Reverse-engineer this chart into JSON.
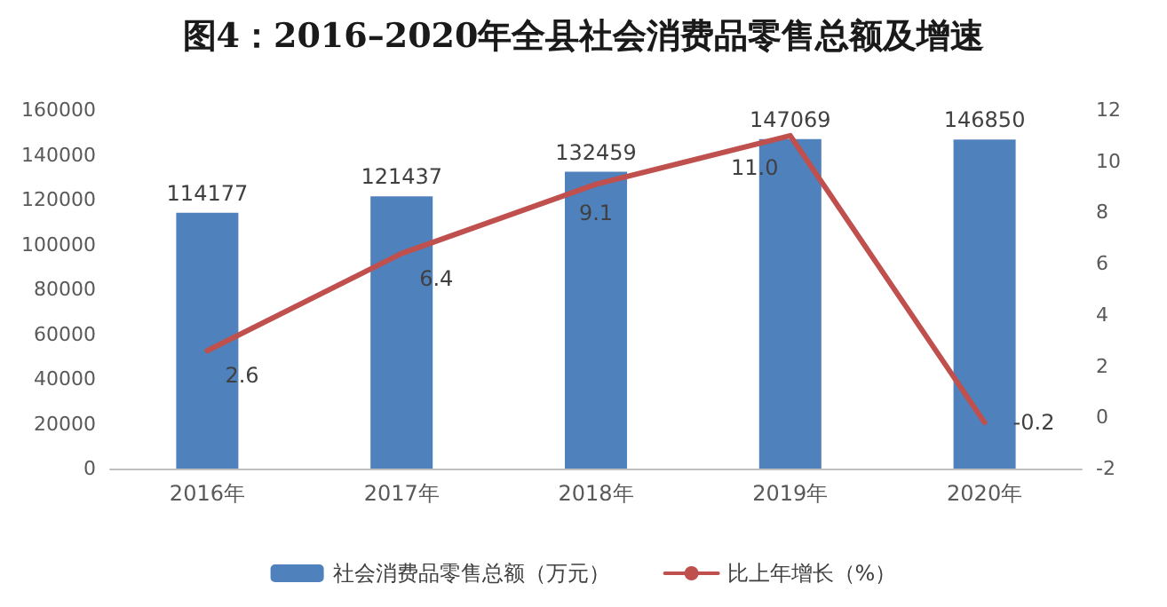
{
  "chart_data": {
    "type": "bar",
    "title": "图4：2016–2020年全县社会消费品零售总额及增速",
    "categories": [
      "2016年",
      "2017年",
      "2018年",
      "2019年",
      "2020年"
    ],
    "series": [
      {
        "name": "社会消费品零售总额（万元）",
        "color": "#4f81bd",
        "values": [
          114177,
          121437,
          132459,
          147069,
          146850
        ],
        "value_labels": [
          "114177",
          "121437",
          "132459",
          "147069",
          "146850"
        ]
      },
      {
        "name": "比上年增长（%）",
        "type": "line",
        "axis": "y2",
        "color": "#c0504d",
        "values": [
          2.6,
          6.4,
          9.1,
          11.0,
          -0.2
        ],
        "value_labels": [
          "2.6",
          "6.4",
          "9.1",
          "11.0",
          "-0.2"
        ]
      }
    ],
    "ylim": [
      0,
      160000
    ],
    "yticks": [
      0,
      20000,
      40000,
      60000,
      80000,
      100000,
      120000,
      140000,
      160000
    ],
    "y2lim": [
      -2,
      12
    ],
    "y2ticks": [
      -2,
      0,
      2,
      4,
      6,
      8,
      10,
      12
    ],
    "grid": false,
    "legend": "bottom",
    "marker": "none",
    "line_style": "solid"
  }
}
